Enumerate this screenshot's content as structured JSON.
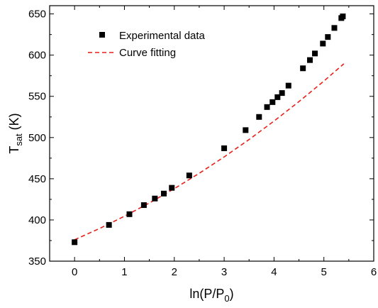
{
  "chart_data": {
    "type": "scatter",
    "xlabel": {
      "main": "ln(P/P",
      "sub": "0",
      "tail": ")"
    },
    "ylabel": {
      "main": "T",
      "sub": "sat",
      "tail": " (K)"
    },
    "xlim": [
      -0.5,
      6
    ],
    "ylim": [
      350,
      660
    ],
    "xticks": [
      0,
      1,
      2,
      3,
      4,
      5,
      6
    ],
    "yticks": [
      350,
      400,
      450,
      500,
      550,
      600,
      650
    ],
    "grid": false,
    "legend_position": "top-left",
    "series": [
      {
        "name": "Experimental data",
        "kind": "scatter",
        "marker": "square",
        "color": "#000000",
        "x": [
          0.0,
          0.69,
          1.1,
          1.39,
          1.61,
          1.79,
          1.95,
          2.3,
          3.0,
          3.43,
          3.7,
          3.86,
          3.97,
          4.07,
          4.16,
          4.29,
          4.58,
          4.72,
          4.82,
          4.98,
          5.08,
          5.21,
          5.35,
          5.38
        ],
        "y": [
          373,
          394,
          407,
          418,
          426,
          432,
          439,
          454,
          487,
          509,
          525,
          537,
          543,
          549,
          554,
          563,
          584,
          594,
          602,
          614,
          622,
          633,
          645,
          647
        ]
      },
      {
        "name": "Curve fitting",
        "kind": "line",
        "style": "dashed",
        "color": "#e8201c",
        "x": [
          0.0,
          0.5,
          1.0,
          1.5,
          2.0,
          2.5,
          3.0,
          3.5,
          4.0,
          4.5,
          5.0,
          5.4
        ],
        "y": [
          376.0,
          389.6,
          404.5,
          420.6,
          438.0,
          456.6,
          476.5,
          497.6,
          520.0,
          543.6,
          568.5,
          589.5
        ]
      }
    ]
  }
}
